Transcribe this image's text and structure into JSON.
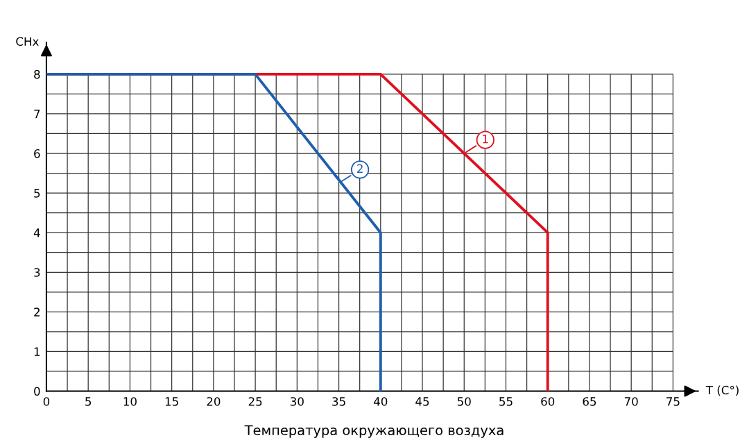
{
  "chart_data": {
    "type": "line",
    "x": [
      0,
      40,
      60,
      60
    ],
    "series": [
      {
        "color": "#e0101e",
        "values": [
          8,
          8,
          4,
          0
        ]
      },
      {
        "color": "#1f5fae",
        "x": [
          0,
          25,
          40,
          40
        ],
        "values": [
          8,
          8,
          4,
          0
        ]
      }
    ],
    "xlabel": "T (C°)",
    "ylabel": "CHx",
    "xlim": [
      0,
      78
    ],
    "ylim": [
      0,
      8.8
    ],
    "xticks": [
      0,
      {
        "value": 2.5,
        "label": null
      },
      5,
      {
        "value": 7.5,
        "label": null
      },
      10,
      {
        "value": 12.5,
        "label": null
      },
      15,
      {
        "value": 17.5,
        "label": null
      },
      20,
      {
        "value": 22.5,
        "label": null
      },
      25,
      {
        "value": 27.5,
        "label": null
      },
      30,
      {
        "value": 32.5,
        "label": null
      },
      35,
      {
        "value": 37.5,
        "label": null
      },
      40,
      {
        "value": 42.5,
        "label": null
      },
      45,
      {
        "value": 47.5,
        "label": null
      },
      50,
      {
        "value": 52.5,
        "label": null
      },
      55,
      {
        "value": 57.5,
        "label": null
      },
      60,
      {
        "value": 62.5,
        "label": null
      },
      65,
      {
        "value": 67.5,
        "label": null
      },
      70,
      {
        "value": 72.5,
        "label": null
      },
      75
    ],
    "yticks": [
      0,
      {
        "value": 0.5,
        "label": null
      },
      1,
      {
        "value": 1.5,
        "label": null
      },
      2,
      {
        "value": 2.5,
        "label": null
      },
      3,
      {
        "value": 3.5,
        "label": null
      },
      4,
      {
        "value": 4.5,
        "label": null
      },
      5,
      {
        "value": 5.5,
        "label": null
      },
      6,
      {
        "value": 6.5,
        "label": null
      },
      7,
      {
        "value": 7.5,
        "label": null
      },
      8
    ],
    "grid": true,
    "annotations": [
      {
        "text": "1",
        "x": 50,
        "y": 6
      },
      {
        "text": "2",
        "x": 35,
        "y": 5.25
      },
      "Температура окружающего воздуха"
    ]
  }
}
